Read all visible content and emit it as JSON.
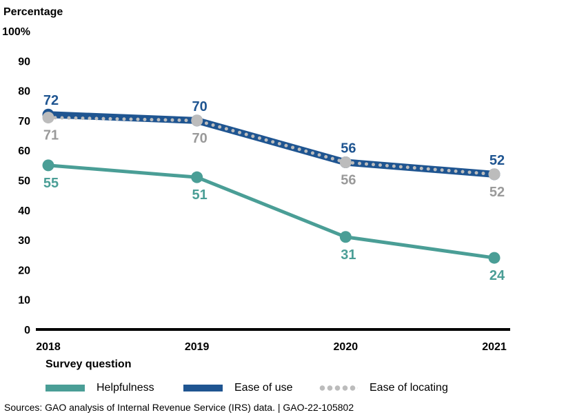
{
  "chart_data": {
    "type": "line",
    "ylabel": "Percentage",
    "ylim": [
      0,
      100
    ],
    "yticks": [
      0,
      10,
      20,
      30,
      40,
      50,
      60,
      70,
      80,
      90,
      100
    ],
    "ytick_labels": [
      "0",
      "10",
      "20",
      "30",
      "40",
      "50",
      "60",
      "70",
      "80",
      "90",
      "100%"
    ],
    "x": [
      "2018",
      "2019",
      "2020",
      "2021"
    ],
    "grid": false,
    "legend_title": "Survey question",
    "legend_placement": "bottom",
    "series": [
      {
        "name": "Helpfulness",
        "values": [
          55,
          51,
          31,
          24
        ],
        "color": "#4a9e96",
        "style": "solid",
        "label_position": "below"
      },
      {
        "name": "Ease of use",
        "values": [
          72,
          70,
          56,
          52
        ],
        "color": "#1f5591",
        "style": "solid-thick",
        "label_position": "above"
      },
      {
        "name": "Ease of locating",
        "values": [
          71,
          70,
          56,
          52
        ],
        "color": "#bcbcbc",
        "style": "dotted",
        "label_position": "below"
      }
    ]
  },
  "source": "Sources: GAO analysis of Internal Revenue Service (IRS) data.  |  GAO-22-105802"
}
